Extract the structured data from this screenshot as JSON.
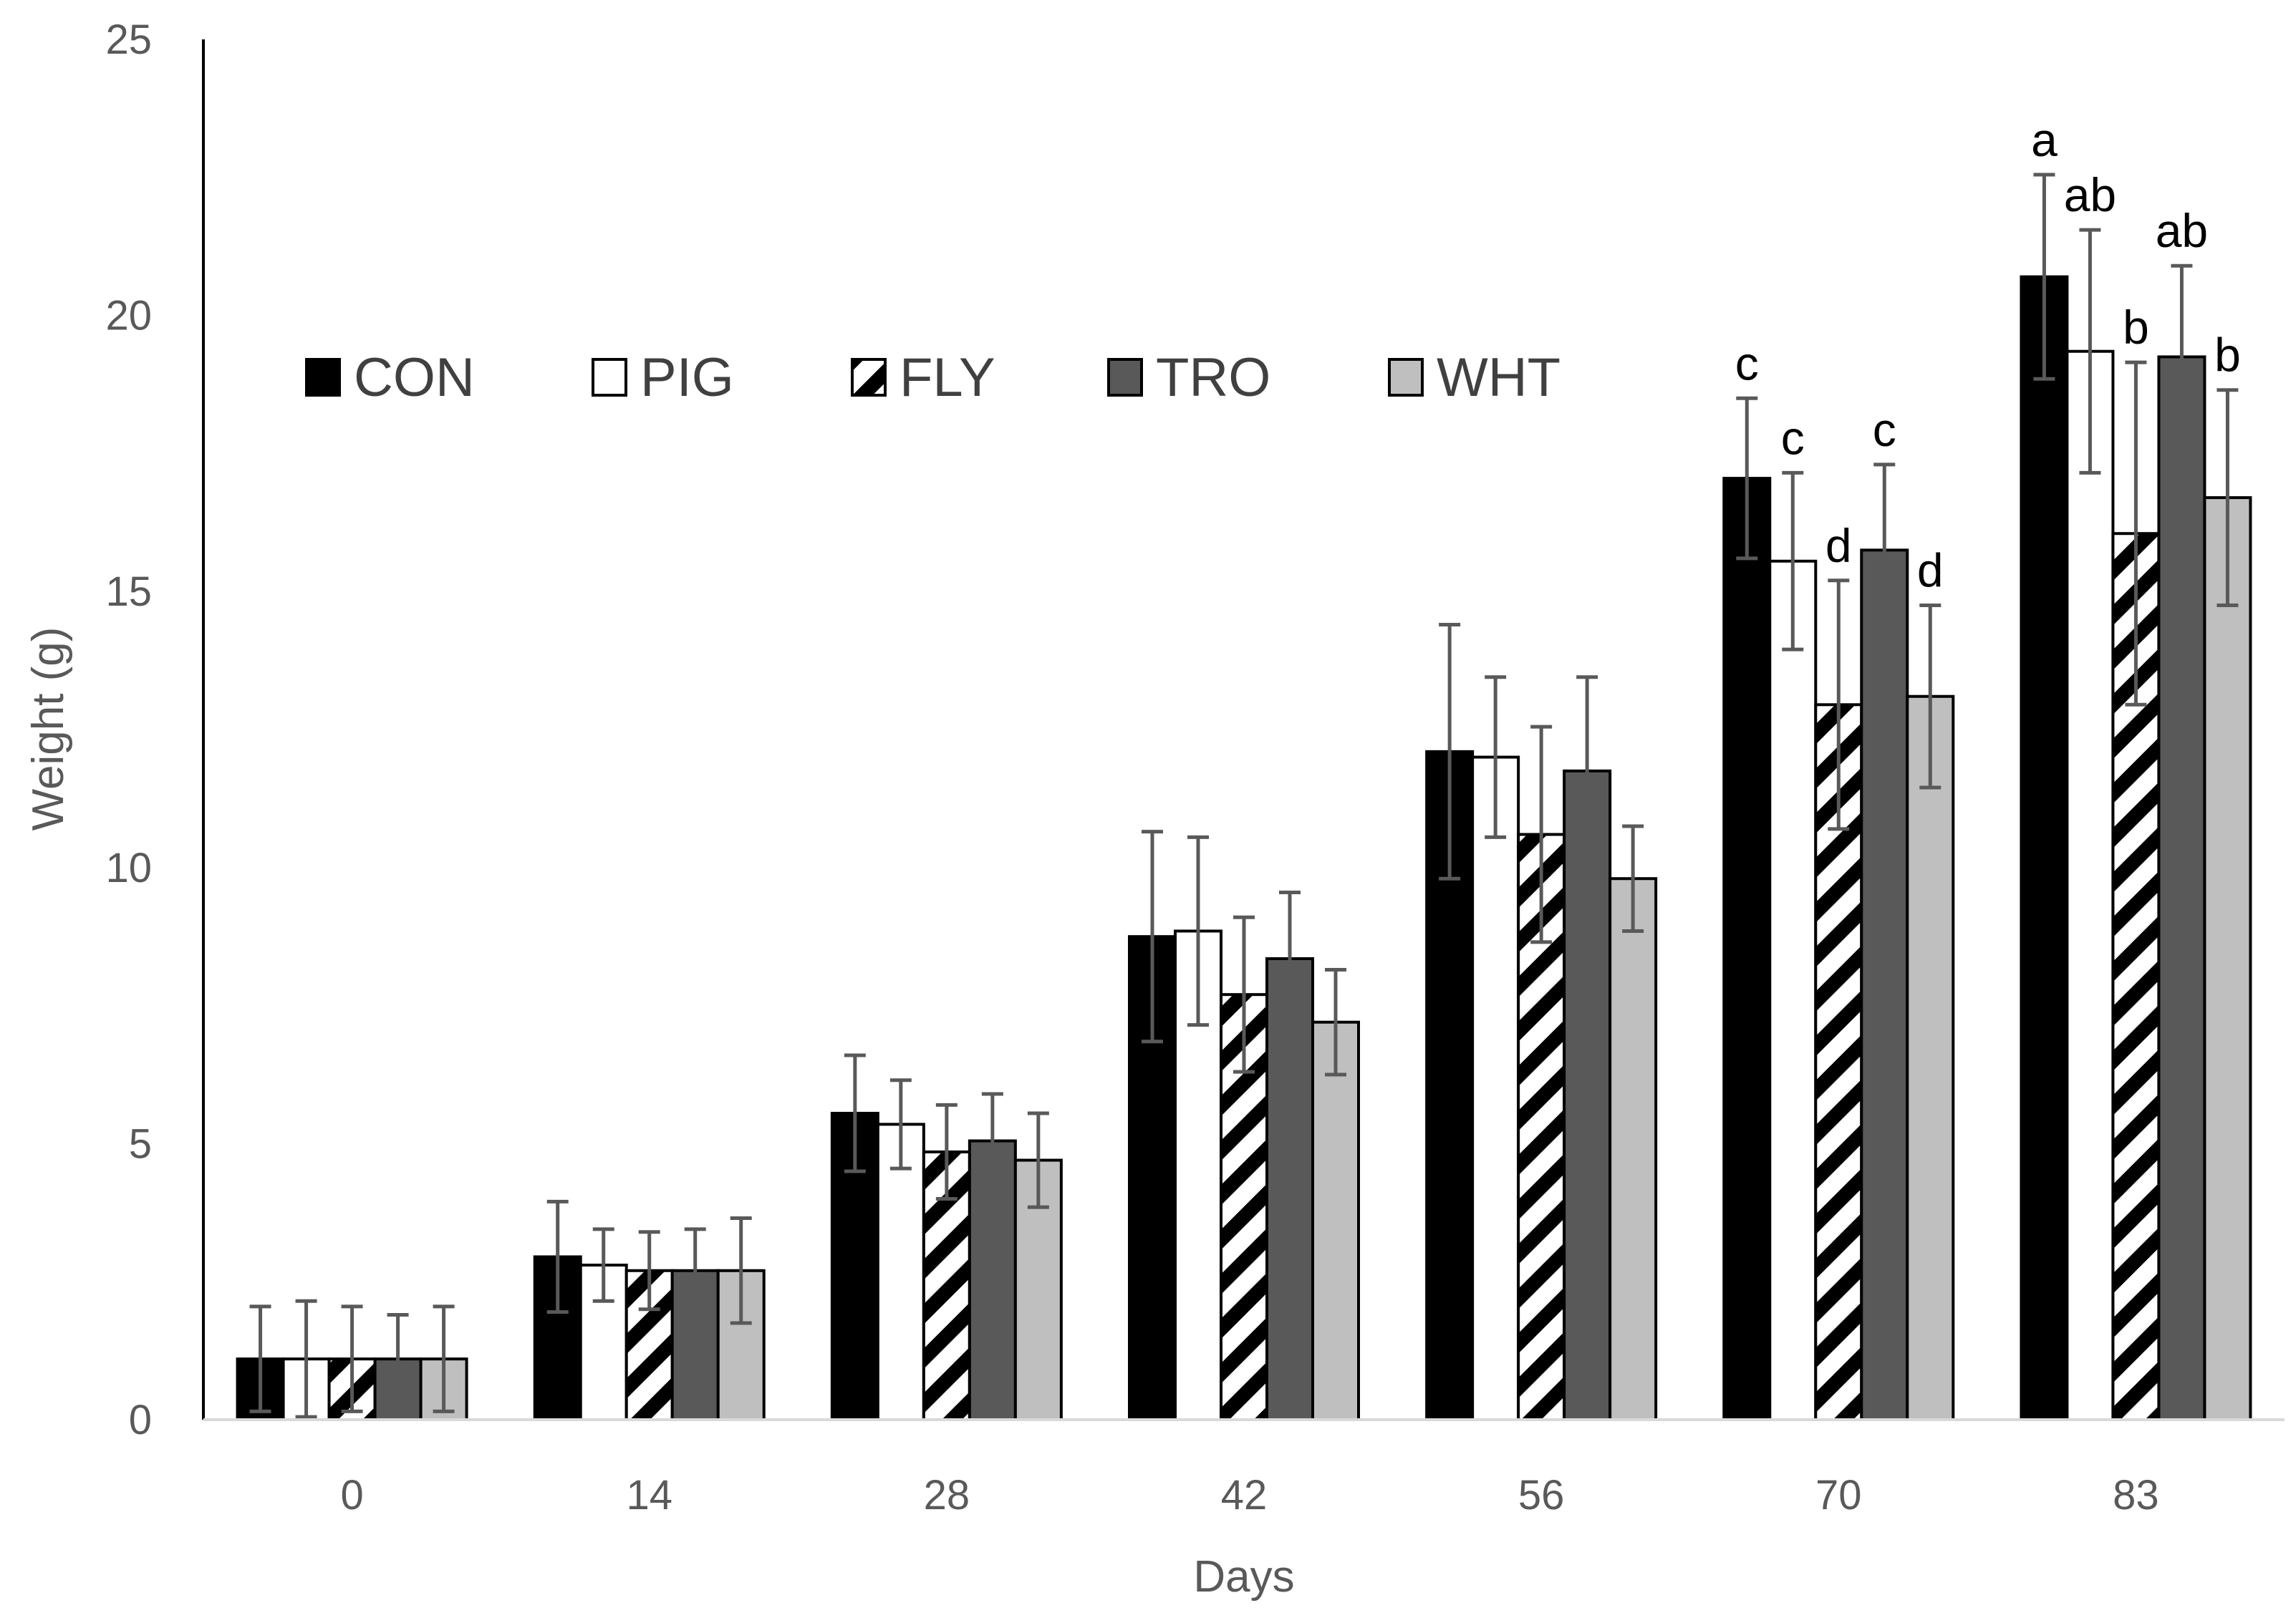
{
  "chart_data": {
    "type": "bar",
    "title": "",
    "xlabel": "Days",
    "ylabel": "Weight (g)",
    "ylim": [
      0,
      25
    ],
    "yticks": [
      "0",
      "5",
      "10",
      "15",
      "20",
      "25"
    ],
    "categories": [
      "0",
      "14",
      "28",
      "42",
      "56",
      "70",
      "83"
    ],
    "legend_placement": "top-left",
    "series": [
      {
        "name": "CON",
        "style": "solid",
        "fill": "#000000",
        "values": [
          1.1,
          2.95,
          5.55,
          8.75,
          12.1,
          17.05,
          20.7
        ],
        "errors": [
          0.95,
          1.0,
          1.05,
          1.9,
          2.3,
          1.45,
          1.85
        ],
        "labels": [
          "",
          "",
          "",
          "",
          "",
          "c",
          "a"
        ]
      },
      {
        "name": "PIG",
        "style": "solid",
        "fill": "#ffffff",
        "values": [
          1.1,
          2.8,
          5.35,
          8.85,
          12.0,
          15.55,
          19.35
        ],
        "errors": [
          1.05,
          0.65,
          0.8,
          1.7,
          1.45,
          1.6,
          2.2
        ],
        "labels": [
          "",
          "",
          "",
          "",
          "",
          "c",
          "ab"
        ]
      },
      {
        "name": "FLY",
        "style": "hatched",
        "fill": "#ffffff",
        "values": [
          1.1,
          2.7,
          4.85,
          7.7,
          10.6,
          12.95,
          16.05
        ],
        "errors": [
          0.95,
          0.7,
          0.85,
          1.4,
          1.95,
          2.25,
          3.1
        ],
        "labels": [
          "",
          "",
          "",
          "",
          "",
          "d",
          "b"
        ]
      },
      {
        "name": "TRO",
        "style": "solid",
        "fill": "#595959",
        "values": [
          1.1,
          2.7,
          5.05,
          8.35,
          11.75,
          15.75,
          19.25
        ],
        "errors": [
          0.8,
          0.75,
          0.85,
          1.2,
          1.7,
          1.55,
          1.65
        ],
        "labels": [
          "",
          "",
          "",
          "",
          "",
          "c",
          "ab"
        ]
      },
      {
        "name": "WHT",
        "style": "solid",
        "fill": "#bfbfbf",
        "values": [
          1.1,
          2.7,
          4.7,
          7.2,
          9.8,
          13.1,
          16.7
        ],
        "errors": [
          0.95,
          0.95,
          0.85,
          0.95,
          0.95,
          1.65,
          1.95
        ],
        "labels": [
          "",
          "",
          "",
          "",
          "",
          "d",
          "b"
        ]
      }
    ]
  }
}
